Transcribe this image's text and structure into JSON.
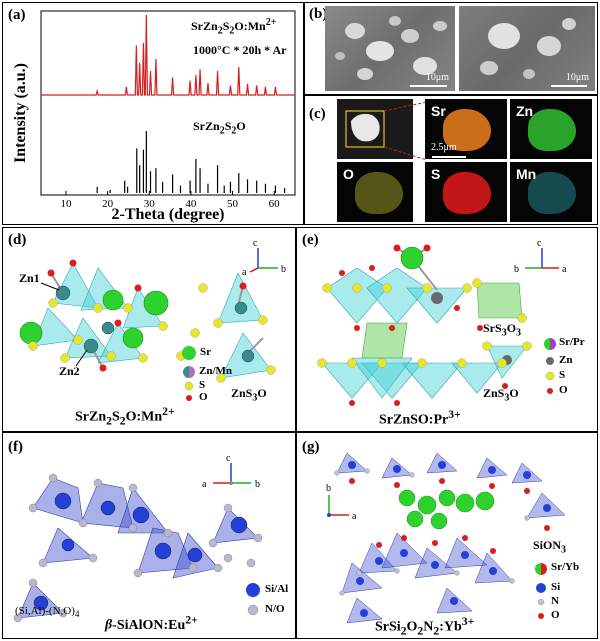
{
  "panels": {
    "a": {
      "label": "(a)",
      "ylabel": "Intensity (a.u.)",
      "xlabel": "2-Theta (degree)",
      "top_title": "SrZn2S2O:Mn2+",
      "top_condition": "1000°C * 20h * Ar",
      "bottom_title": "SrZn2S2O",
      "top_color": "#d42020",
      "bottom_color": "#000000"
    },
    "b": {
      "label": "(b)",
      "scale_left": "10μm",
      "scale_right": "10μm"
    },
    "c": {
      "label": "(c)",
      "scale": "2.5μm",
      "elements": [
        {
          "name": "Sr",
          "color": "#e07a1a"
        },
        {
          "name": "Zn",
          "color": "#2fb52f"
        },
        {
          "name": "O",
          "color": "#b8b830"
        },
        {
          "name": "S",
          "color": "#d81818"
        },
        {
          "name": "Mn",
          "color": "#2aa0a8"
        }
      ]
    },
    "d": {
      "label": "(d)",
      "zn1": "Zn1",
      "zn2": "Zn2",
      "legend": {
        "sr": "Sr",
        "znmn": "Zn/Mn",
        "s": "S",
        "o": "O"
      },
      "unit": "ZnS3O",
      "title": "SrZn2S2O:Mn2+",
      "axes": {
        "c": "c",
        "a": "a",
        "b": "b"
      }
    },
    "e": {
      "label": "(e)",
      "srs3o3": "SrS3O3",
      "zns3o": "ZnS3O",
      "legend": {
        "srpr": "Sr/Pr",
        "zn": "Zn",
        "s": "S",
        "o": "O"
      },
      "title": "SrZnSO:Pr3+",
      "axes": {
        "c": "c",
        "b": "b",
        "a": "a"
      }
    },
    "f": {
      "label": "(f)",
      "unit": "(Si,Al)-(N,O)4",
      "title": "β-SiAlON:Eu2+",
      "legend": {
        "sial": "Si/Al",
        "no": "N/O"
      },
      "axes": {
        "c": "c",
        "a": "a",
        "b": "b"
      }
    },
    "g": {
      "label": "(g)",
      "unit": "SiON3",
      "title": "SrSi2O2N2:Yb3+",
      "legend": {
        "sryb": "Sr/Yb",
        "si": "Si",
        "n": "N",
        "o": "O"
      },
      "axes": {
        "b": "b",
        "a": "a"
      }
    }
  },
  "chart_data": {
    "type": "bar",
    "xlabel": "2-Theta (degree)",
    "ylabel": "Intensity (a.u.)",
    "xlim": [
      4,
      65
    ],
    "xticks": [
      10,
      20,
      30,
      40,
      50,
      60
    ],
    "series": [
      {
        "name": "SrZn2S2O:Mn2+",
        "x": [
          17.5,
          24.5,
          26.9,
          27.7,
          28.6,
          29.3,
          30.3,
          31.6,
          35.6,
          39.8,
          41.2,
          42.2,
          44.1,
          46.4,
          49.5,
          51.5,
          53.6,
          55.8,
          57.9,
          60.3
        ],
        "values": [
          0.05,
          0.1,
          0.62,
          0.4,
          0.65,
          1.0,
          0.3,
          0.45,
          0.22,
          0.18,
          0.25,
          0.32,
          0.15,
          0.3,
          0.12,
          0.35,
          0.14,
          0.12,
          0.1,
          0.1
        ]
      },
      {
        "name": "SrZn2S2O",
        "x": [
          17.5,
          20.6,
          24.1,
          24.8,
          27.0,
          27.7,
          28.6,
          29.3,
          30.3,
          31.6,
          33.2,
          35.6,
          37.5,
          39.8,
          41.2,
          42.2,
          44.1,
          46.4,
          48.0,
          49.5,
          51.5,
          53.6,
          55.8,
          57.9,
          60.3,
          62.5
        ],
        "values": [
          0.1,
          0.05,
          0.2,
          0.1,
          0.72,
          0.45,
          0.7,
          1.0,
          0.35,
          0.4,
          0.18,
          0.3,
          0.12,
          0.2,
          0.55,
          0.4,
          0.15,
          0.45,
          0.12,
          0.18,
          0.32,
          0.22,
          0.2,
          0.15,
          0.12,
          0.08
        ]
      }
    ]
  }
}
